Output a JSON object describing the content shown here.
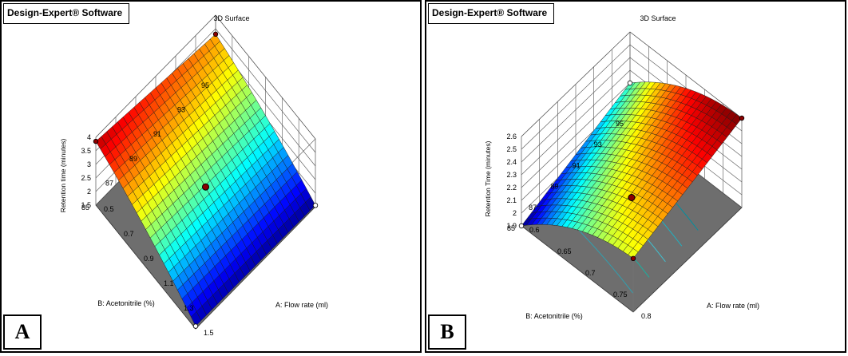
{
  "chart_data": [
    {
      "panel": "A",
      "brand": "Design-Expert® Software",
      "type": "surface3d",
      "title": "3D Surface",
      "xlabel": "A: Flow rate (ml)",
      "ylabel": "B: Acetonitrile (%)",
      "zlabel": "Retention time (minutes)",
      "x_ticks": [
        "0.5",
        "0.7",
        "0.9",
        "1.1",
        "1.3",
        "1.5"
      ],
      "y_ticks": [
        "85",
        "87",
        "89",
        "91",
        "93",
        "95"
      ],
      "z_ticks": [
        "1.5",
        "2",
        "2.5",
        "3",
        "3.5",
        "4"
      ],
      "xlim": [
        0.5,
        1.5
      ],
      "ylim": [
        85,
        95
      ],
      "zlim": [
        1.5,
        4
      ],
      "surface_corners": [
        {
          "x": 0.5,
          "y": 95,
          "z": 3.3
        },
        {
          "x": 0.5,
          "y": 85,
          "z": 3.85
        },
        {
          "x": 1.5,
          "y": 95,
          "z": 1.55
        },
        {
          "x": 1.5,
          "y": 85,
          "z": 1.6
        }
      ],
      "design_point": {
        "x": 1.0,
        "y": 90,
        "z": 2.2
      }
    },
    {
      "panel": "B",
      "brand": "Design-Expert® Software",
      "type": "surface3d",
      "title": "3D Surface",
      "xlabel": "A: Flow rate (ml)",
      "ylabel": "B: Acetonitrile (%)",
      "zlabel": "Retention Time (minutes)",
      "x_ticks": [
        "0.6",
        "0.65",
        "0.7",
        "0.75",
        "0.8"
      ],
      "y_ticks": [
        "85",
        "87",
        "89",
        "91",
        "93",
        "95"
      ],
      "z_ticks": [
        "1.9",
        "2",
        "2.1",
        "2.2",
        "2.3",
        "2.4",
        "2.5",
        "2.6"
      ],
      "xlim": [
        0.6,
        0.8
      ],
      "ylim": [
        85,
        95
      ],
      "zlim": [
        1.9,
        2.6
      ],
      "surface_corners": [
        {
          "x": 0.6,
          "y": 95,
          "z": 2.2
        },
        {
          "x": 0.6,
          "y": 85,
          "z": 1.9
        },
        {
          "x": 0.8,
          "y": 95,
          "z": 2.6
        },
        {
          "x": 0.8,
          "y": 85,
          "z": 2.32
        }
      ],
      "design_point": {
        "x": 0.7,
        "y": 90,
        "z": 2.05
      }
    }
  ]
}
